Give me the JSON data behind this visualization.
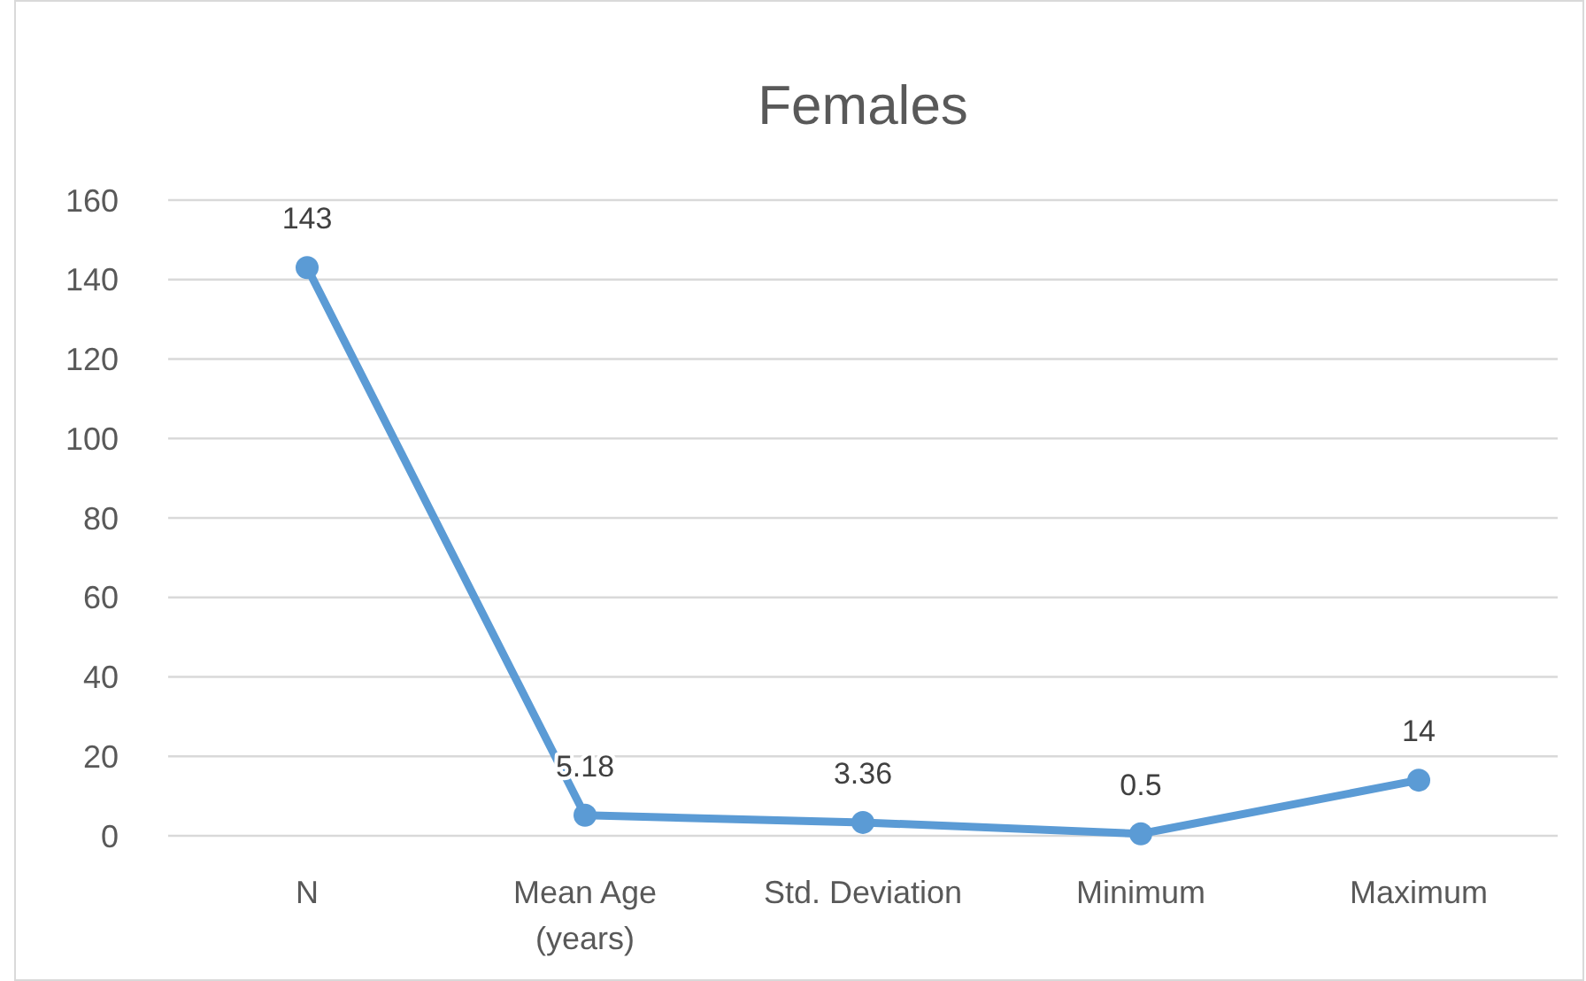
{
  "chart_data": {
    "type": "line",
    "title": "Females",
    "categories": [
      "N",
      "Mean Age (years)",
      "Std. Deviation",
      "Minimum",
      "Maximum"
    ],
    "series": [
      {
        "color": "#5b9bd5",
        "values": [
          143,
          5.18,
          3.36,
          0.5,
          14
        ]
      }
    ],
    "ylim": [
      0,
      160
    ],
    "yticks": [
      0,
      20,
      40,
      60,
      80,
      100,
      120,
      140,
      160
    ],
    "grid": "y",
    "marker": "circle",
    "line_style": "solid",
    "data_labels": true
  }
}
